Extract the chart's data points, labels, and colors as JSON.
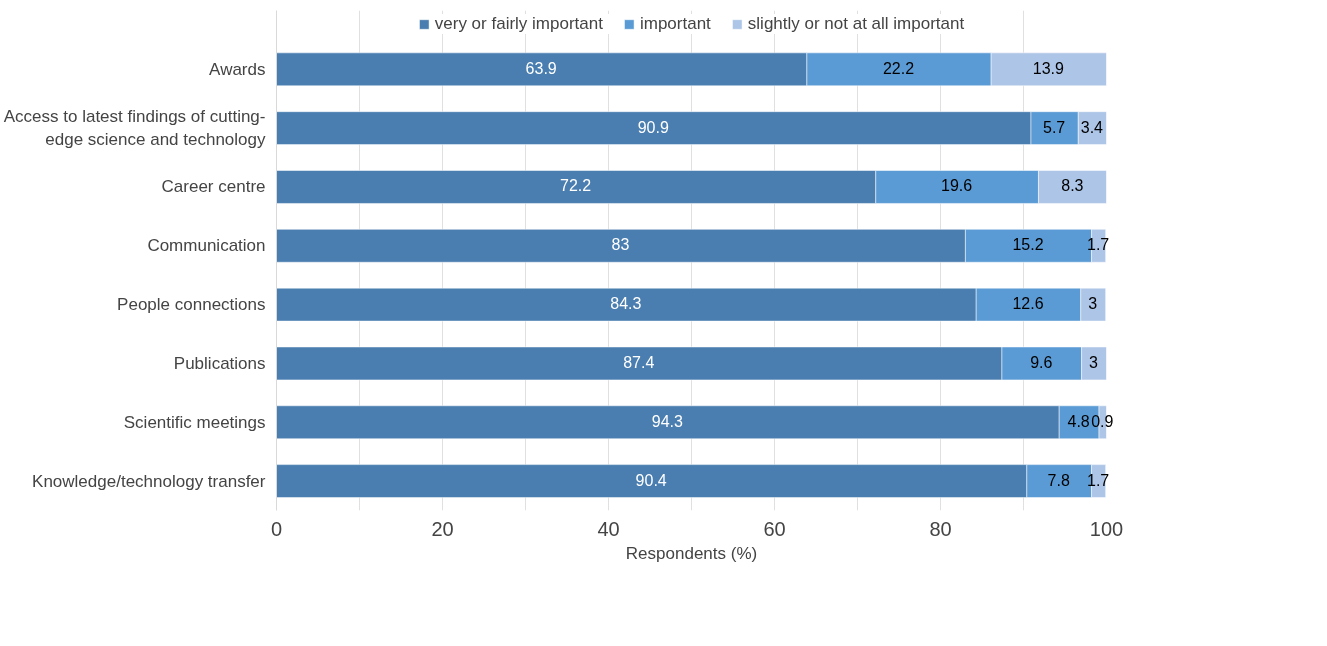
{
  "chart_data": {
    "type": "bar",
    "orientation": "horizontal",
    "stacked": true,
    "data_labels": true,
    "categories": [
      "Awards",
      "Access to latest findings of cutting-\nedge science and technology",
      "Career centre",
      "Communication",
      "People connections",
      "Publications",
      "Scientific meetings",
      "Knowledge/technology transfer"
    ],
    "series": [
      {
        "name": "very or fairly important",
        "color": "#4a7eb0",
        "values": [
          63.9,
          90.9,
          72.2,
          83,
          84.3,
          87.4,
          94.3,
          90.4
        ]
      },
      {
        "name": "important",
        "color": "#5b9bd5",
        "values": [
          22.2,
          5.7,
          19.6,
          15.2,
          12.6,
          9.6,
          4.8,
          7.8
        ]
      },
      {
        "name": "slightly or not at all important",
        "color": "#adc5e7",
        "values": [
          13.9,
          3.4,
          8.3,
          1.7,
          3,
          3,
          0.9,
          1.7
        ]
      }
    ],
    "xlabel": "Respondents (%)",
    "xlim": [
      0,
      100
    ],
    "xticks": [
      0,
      {
        "value": 10,
        "label": null
      },
      20,
      {
        "value": 30,
        "label": null
      },
      40,
      {
        "value": 50,
        "label": null
      },
      60,
      {
        "value": 70,
        "label": null
      },
      80,
      {
        "value": 90,
        "label": null
      },
      100
    ],
    "grid": "x",
    "legend": "top"
  }
}
